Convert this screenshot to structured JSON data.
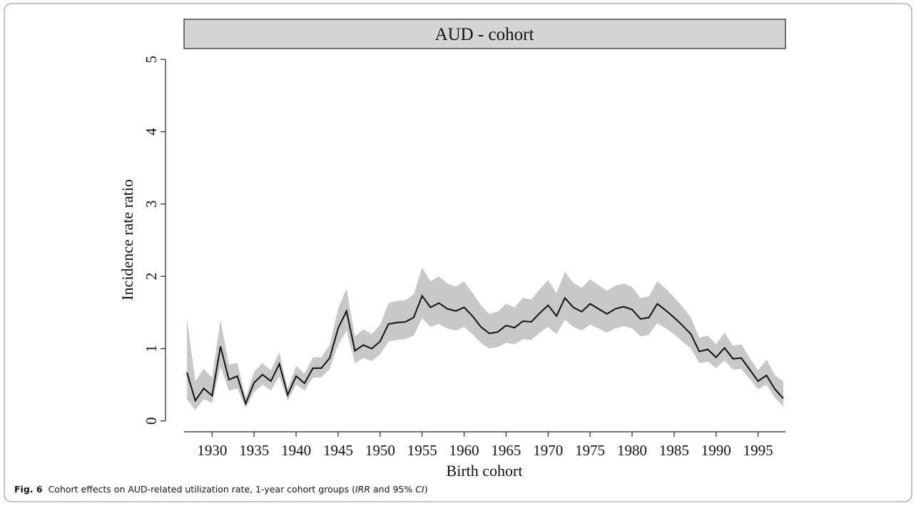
{
  "chart_data": {
    "type": "line",
    "strip": "AUD - cohort",
    "xlabel": "Birth cohort",
    "ylabel": "Incidence rate ratio",
    "x": [
      1927,
      1928,
      1929,
      1930,
      1931,
      1932,
      1933,
      1934,
      1935,
      1936,
      1937,
      1938,
      1939,
      1940,
      1941,
      1942,
      1943,
      1944,
      1945,
      1946,
      1947,
      1948,
      1949,
      1950,
      1951,
      1952,
      1953,
      1954,
      1955,
      1956,
      1957,
      1958,
      1959,
      1960,
      1961,
      1962,
      1963,
      1964,
      1965,
      1966,
      1967,
      1968,
      1969,
      1970,
      1971,
      1972,
      1973,
      1974,
      1975,
      1976,
      1977,
      1978,
      1979,
      1980,
      1981,
      1982,
      1983,
      1984,
      1985,
      1986,
      1987,
      1988,
      1989,
      1990,
      1991,
      1992,
      1993,
      1994,
      1995,
      1996,
      1997,
      1998
    ],
    "values": [
      0.67,
      0.28,
      0.45,
      0.35,
      1.03,
      0.57,
      0.62,
      0.24,
      0.53,
      0.64,
      0.55,
      0.79,
      0.36,
      0.62,
      0.52,
      0.73,
      0.73,
      0.87,
      1.28,
      1.52,
      0.97,
      1.05,
      1.0,
      1.1,
      1.34,
      1.36,
      1.37,
      1.43,
      1.73,
      1.57,
      1.63,
      1.55,
      1.52,
      1.57,
      1.45,
      1.3,
      1.21,
      1.23,
      1.32,
      1.29,
      1.38,
      1.37,
      1.49,
      1.6,
      1.45,
      1.7,
      1.57,
      1.51,
      1.62,
      1.55,
      1.48,
      1.55,
      1.58,
      1.54,
      1.41,
      1.43,
      1.62,
      1.53,
      1.43,
      1.32,
      1.2,
      0.96,
      0.99,
      0.88,
      1.01,
      0.86,
      0.87,
      0.71,
      0.55,
      0.63,
      0.44,
      0.31
    ],
    "ci_lower": [
      0.3,
      0.15,
      0.3,
      0.25,
      0.75,
      0.42,
      0.45,
      0.18,
      0.4,
      0.5,
      0.42,
      0.62,
      0.28,
      0.5,
      0.42,
      0.6,
      0.6,
      0.72,
      1.05,
      1.25,
      0.8,
      0.87,
      0.83,
      0.92,
      1.1,
      1.12,
      1.13,
      1.18,
      1.42,
      1.3,
      1.34,
      1.28,
      1.25,
      1.3,
      1.2,
      1.08,
      1.0,
      1.02,
      1.08,
      1.06,
      1.13,
      1.12,
      1.22,
      1.3,
      1.2,
      1.4,
      1.3,
      1.25,
      1.33,
      1.28,
      1.22,
      1.28,
      1.31,
      1.28,
      1.17,
      1.19,
      1.35,
      1.28,
      1.2,
      1.1,
      1.0,
      0.8,
      0.82,
      0.73,
      0.84,
      0.71,
      0.72,
      0.58,
      0.44,
      0.5,
      0.32,
      0.2
    ],
    "ci_upper": [
      1.42,
      0.55,
      0.72,
      0.6,
      1.4,
      0.78,
      0.8,
      0.32,
      0.68,
      0.8,
      0.7,
      0.95,
      0.45,
      0.76,
      0.65,
      0.88,
      0.88,
      1.05,
      1.55,
      1.83,
      1.17,
      1.27,
      1.2,
      1.33,
      1.63,
      1.66,
      1.67,
      1.75,
      2.12,
      1.93,
      2.0,
      1.9,
      1.86,
      1.93,
      1.77,
      1.6,
      1.48,
      1.51,
      1.62,
      1.57,
      1.7,
      1.68,
      1.82,
      1.95,
      1.77,
      2.06,
      1.91,
      1.84,
      1.96,
      1.88,
      1.8,
      1.87,
      1.9,
      1.85,
      1.7,
      1.72,
      1.93,
      1.83,
      1.71,
      1.58,
      1.43,
      1.15,
      1.18,
      1.06,
      1.22,
      1.04,
      1.06,
      0.87,
      0.7,
      0.85,
      0.63,
      0.55
    ],
    "color": "#111111",
    "band_color": "#c8c8c8",
    "xlim": [
      1927,
      1998
    ],
    "ylim": [
      -0.15,
      5.15
    ],
    "xticks": [
      1930,
      1935,
      1940,
      1945,
      1950,
      1955,
      1960,
      1965,
      1970,
      1975,
      1980,
      1985,
      1990,
      1995
    ],
    "yticks": [
      0,
      1,
      2,
      3,
      4,
      5
    ]
  },
  "caption": {
    "label": "Fig. 6",
    "parts": [
      "Cohort effects on AUD-related utilization rate, 1-year cohort groups (",
      "IRR",
      " and 95% ",
      "CI",
      ")"
    ]
  }
}
